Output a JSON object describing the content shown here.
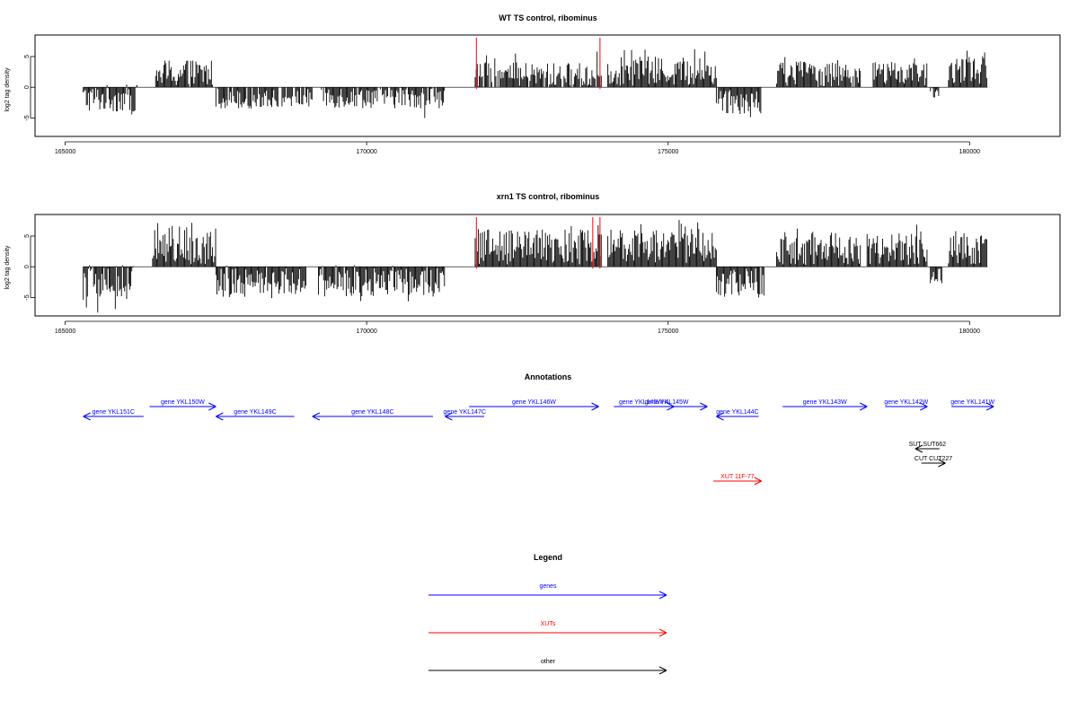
{
  "colors": {
    "genes": "#0000ff",
    "xuts": "#ff0000",
    "other": "#000000",
    "signal": "#000000",
    "marker": "#ff0000"
  },
  "chart_data": [
    {
      "type": "bar",
      "title": "WT TS control, ribominus",
      "xlabel": "",
      "ylabel": "log2 tag density",
      "xlim": [
        164500,
        181500
      ],
      "ylim": [
        -8,
        8.5
      ],
      "xticks": [
        165000,
        170000,
        175000,
        180000
      ],
      "xtick_labels": [
        "165000",
        "170000",
        "175000",
        "180000"
      ],
      "yticks": [
        -5,
        0,
        5
      ],
      "ytick_labels": [
        "-5",
        "0",
        "5"
      ],
      "baseline": [
        165300,
        180300
      ],
      "markers_x": [
        171820,
        173870
      ],
      "signal_segments": [
        {
          "x": [
            165300,
            166200
          ],
          "mean": -1.8,
          "amp": 1.4,
          "min": -5.0,
          "max": 1.8
        },
        {
          "x": [
            166500,
            167450
          ],
          "mean": 2.2,
          "amp": 1.5,
          "min": 0.0,
          "max": 5.0
        },
        {
          "x": [
            167500,
            169100
          ],
          "mean": -1.5,
          "amp": 1.2,
          "min": -4.0,
          "max": 0.0
        },
        {
          "x": [
            169250,
            171300
          ],
          "mean": -1.5,
          "amp": 1.2,
          "min": -5.3,
          "max": 0.0
        },
        {
          "x": [
            171800,
            173900
          ],
          "mean": 1.8,
          "amp": 1.4,
          "min": 0.0,
          "max": 6.0
        },
        {
          "x": [
            174000,
            175800
          ],
          "mean": 2.6,
          "amp": 1.5,
          "min": 0.0,
          "max": 6.5
        },
        {
          "x": [
            175800,
            176550
          ],
          "mean": -2.0,
          "amp": 1.5,
          "min": -5.5,
          "max": 0.0
        },
        {
          "x": [
            176800,
            178200
          ],
          "mean": 2.2,
          "amp": 1.4,
          "min": 0.0,
          "max": 5.0
        },
        {
          "x": [
            178400,
            179300
          ],
          "mean": 2.2,
          "amp": 1.2,
          "min": -2.0,
          "max": 4.8
        },
        {
          "x": [
            179350,
            179500
          ],
          "mean": -1.2,
          "amp": 0.8,
          "min": -2.5,
          "max": 0.0
        },
        {
          "x": [
            179650,
            180300
          ],
          "mean": 2.8,
          "amp": 1.4,
          "min": 0.0,
          "max": 6.0
        }
      ]
    },
    {
      "type": "bar",
      "title": "xrn1 TS control, ribominus",
      "xlabel": "",
      "ylabel": "log2 tag density",
      "xlim": [
        164500,
        181500
      ],
      "ylim": [
        -8,
        8.5
      ],
      "xticks": [
        165000,
        170000,
        175000,
        180000
      ],
      "xtick_labels": [
        "165000",
        "170000",
        "175000",
        "180000"
      ],
      "yticks": [
        -5,
        0,
        5
      ],
      "ytick_labels": [
        "-5",
        "0",
        "5"
      ],
      "baseline": [
        165300,
        180300
      ],
      "markers_x": [
        171820,
        173750,
        173870
      ],
      "signal_segments": [
        {
          "x": [
            165300,
            166150
          ],
          "mean": -2.6,
          "amp": 1.8,
          "min": -7.5,
          "max": 3.0
        },
        {
          "x": [
            166450,
            167500
          ],
          "mean": 3.6,
          "amp": 2.0,
          "min": 0.0,
          "max": 7.5
        },
        {
          "x": [
            167500,
            169000
          ],
          "mean": -2.2,
          "amp": 1.5,
          "min": -5.5,
          "max": 2.5
        },
        {
          "x": [
            169200,
            171300
          ],
          "mean": -2.3,
          "amp": 1.6,
          "min": -6.8,
          "max": 1.0
        },
        {
          "x": [
            171800,
            173900
          ],
          "mean": 3.2,
          "amp": 1.8,
          "min": -1.0,
          "max": 7.0
        },
        {
          "x": [
            174000,
            175800
          ],
          "mean": 3.4,
          "amp": 1.8,
          "min": 0.0,
          "max": 8.0
        },
        {
          "x": [
            175800,
            176600
          ],
          "mean": -2.5,
          "amp": 1.6,
          "min": -6.0,
          "max": 0.0
        },
        {
          "x": [
            176800,
            178200
          ],
          "mean": 2.9,
          "amp": 1.6,
          "min": 0.0,
          "max": 6.5
        },
        {
          "x": [
            178300,
            179300
          ],
          "mean": 2.9,
          "amp": 1.6,
          "min": -2.5,
          "max": 7.0
        },
        {
          "x": [
            179350,
            179550
          ],
          "mean": -1.5,
          "amp": 0.8,
          "min": -2.8,
          "max": 0.0
        },
        {
          "x": [
            179650,
            180300
          ],
          "mean": 3.0,
          "amp": 1.6,
          "min": 0.0,
          "max": 7.0
        }
      ]
    },
    {
      "type": "diagram",
      "title": "Annotations",
      "xlim": [
        164500,
        181500
      ],
      "features": [
        {
          "label": "gene YKL151C",
          "start": 165300,
          "end": 166300,
          "strand": "-",
          "kind": "genes",
          "row": 1
        },
        {
          "label": "gene YKL150W",
          "start": 166400,
          "end": 167500,
          "strand": "+",
          "kind": "genes",
          "row": 0
        },
        {
          "label": "gene YKL149C",
          "start": 167500,
          "end": 168800,
          "strand": "-",
          "kind": "genes",
          "row": 1
        },
        {
          "label": "gene YKL148C",
          "start": 169100,
          "end": 171100,
          "strand": "-",
          "kind": "genes",
          "row": 1
        },
        {
          "label": "gene YKL147C",
          "start": 171300,
          "end": 171950,
          "strand": "-",
          "kind": "genes",
          "row": 1
        },
        {
          "label": "gene YKL146W",
          "start": 171700,
          "end": 173850,
          "strand": "+",
          "kind": "genes",
          "row": 0
        },
        {
          "label": "gene YKL145W-A",
          "start": 174100,
          "end": 175100,
          "strand": "+",
          "kind": "genes",
          "row": 0
        },
        {
          "label": "gene YKL145W",
          "start": 174300,
          "end": 175650,
          "strand": "+",
          "kind": "genes",
          "row": 0
        },
        {
          "label": "gene YKL144C",
          "start": 175800,
          "end": 176500,
          "strand": "-",
          "kind": "genes",
          "row": 1
        },
        {
          "label": "gene YKL143W",
          "start": 176900,
          "end": 178300,
          "strand": "+",
          "kind": "genes",
          "row": 0
        },
        {
          "label": "gene YKL142W",
          "start": 178600,
          "end": 179300,
          "strand": "+",
          "kind": "genes",
          "row": 0
        },
        {
          "label": "gene YKL141W",
          "start": 179700,
          "end": 180400,
          "strand": "+",
          "kind": "genes",
          "row": 0
        },
        {
          "label": "SUT SUT662",
          "start": 179100,
          "end": 179500,
          "strand": "-",
          "kind": "other",
          "row": 3
        },
        {
          "label": "CUT CUT227",
          "start": 179200,
          "end": 179600,
          "strand": "+",
          "kind": "other",
          "row": 4
        },
        {
          "label": "XUT 11F-77",
          "start": 175750,
          "end": 176550,
          "strand": "+",
          "kind": "xuts",
          "row": 5
        }
      ]
    },
    {
      "type": "legend",
      "title": "Legend",
      "entries": [
        {
          "label": "genes",
          "kind": "genes"
        },
        {
          "label": "XUTs",
          "kind": "xuts"
        },
        {
          "label": "other",
          "kind": "other"
        }
      ]
    }
  ]
}
